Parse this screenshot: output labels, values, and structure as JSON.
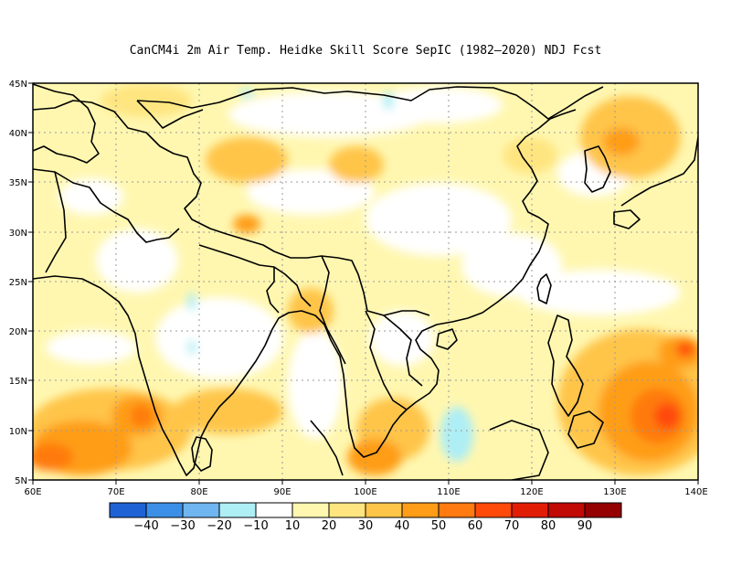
{
  "title": "CanCM4i  2m Air Temp. Heidke Skill Score SepIC (1982–2020) NDJ Fcst",
  "map": {
    "lon_range": [
      60,
      140
    ],
    "lat_range": [
      5,
      45
    ],
    "lon_ticks": [
      "60E",
      "70E",
      "80E",
      "90E",
      "100E",
      "110E",
      "120E",
      "130E",
      "140E"
    ],
    "lat_ticks": [
      "5N",
      "10N",
      "15N",
      "20N",
      "25N",
      "30N",
      "35N",
      "40N",
      "45N"
    ],
    "grid": "dotted"
  },
  "colorbar": {
    "colors": [
      "#1f62d6",
      "#3c8fe6",
      "#6fb5f0",
      "#aeeef5",
      "#ffffff",
      "#fff7b0",
      "#ffe580",
      "#ffc548",
      "#ff9d18",
      "#ff7a10",
      "#ff4a0a",
      "#e21d06",
      "#c00a03",
      "#950000"
    ],
    "labels": [
      "−40",
      "−30",
      "−20",
      "−10",
      "10",
      "20",
      "30",
      "40",
      "50",
      "60",
      "70",
      "80",
      "90"
    ]
  }
}
